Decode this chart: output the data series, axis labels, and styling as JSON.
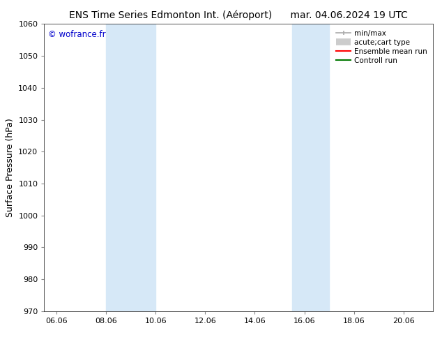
{
  "title": "ENS Time Series Edmonton Int. (Aéroport)      mar. 04.06.2024 19 UTC",
  "ylabel": "Surface Pressure (hPa)",
  "ylim": [
    970,
    1060
  ],
  "yticks": [
    970,
    980,
    990,
    1000,
    1010,
    1020,
    1030,
    1040,
    1050,
    1060
  ],
  "xlim_start": 5.5,
  "xlim_end": 21.2,
  "xtick_labels": [
    "06.06",
    "08.06",
    "10.06",
    "12.06",
    "14.06",
    "16.06",
    "18.06",
    "20.06"
  ],
  "xtick_positions": [
    6,
    8,
    10,
    12,
    14,
    16,
    18,
    20
  ],
  "shaded_bands": [
    {
      "x_start": 8.0,
      "x_end": 10.0
    },
    {
      "x_start": 15.5,
      "x_end": 17.0
    }
  ],
  "band_color": "#d6e8f7",
  "background_color": "#ffffff",
  "watermark_text": "© wofrance.fr",
  "watermark_color": "#0000cc",
  "legend_items": [
    {
      "label": "min/max",
      "color": "#aaaaaa",
      "lw": 1.2
    },
    {
      "label": "acute;cart type",
      "color": "#cccccc",
      "lw": 7
    },
    {
      "label": "Ensemble mean run",
      "color": "#ff0000",
      "lw": 1.5
    },
    {
      "label": "Controll run",
      "color": "#007700",
      "lw": 1.5
    }
  ],
  "title_fontsize": 10,
  "tick_fontsize": 8,
  "ylabel_fontsize": 9,
  "watermark_fontsize": 8.5,
  "legend_fontsize": 7.5
}
